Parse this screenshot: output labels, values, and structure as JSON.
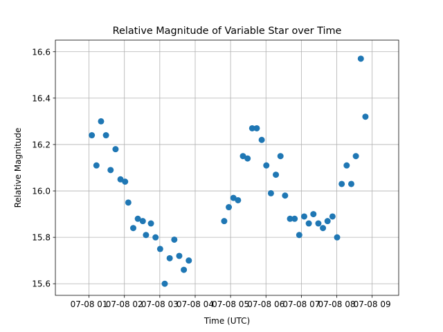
{
  "chart_data": {
    "type": "scatter",
    "title": "Relative Magnitude of Variable Star over Time",
    "xlabel": "Time (UTC)",
    "ylabel": "Relative Magnitude",
    "grid": true,
    "marker_color": "#1f77b4",
    "x_tick_labels": [
      "07-08 01",
      "07-08 02",
      "07-08 03",
      "07-08 04",
      "07-08 05",
      "07-08 06",
      "07-08 07",
      "07-08 08",
      "07-08 09"
    ],
    "x_tick_hours": [
      1,
      2,
      3,
      4,
      5,
      6,
      7,
      8,
      9
    ],
    "xlim_hours": [
      0.05,
      9.75
    ],
    "ylim": [
      15.55,
      16.65
    ],
    "y_ticks": [
      15.6,
      15.8,
      16.0,
      16.2,
      16.4,
      16.6
    ],
    "y_tick_labels": [
      "15.6",
      "15.8",
      "16.0",
      "16.2",
      "16.4",
      "16.6"
    ],
    "x_unit_note": "x values are hours of day on 07-08",
    "points": [
      {
        "x": 1.08,
        "y": 16.24
      },
      {
        "x": 1.21,
        "y": 16.11
      },
      {
        "x": 1.34,
        "y": 16.3
      },
      {
        "x": 1.48,
        "y": 16.24
      },
      {
        "x": 1.61,
        "y": 16.09
      },
      {
        "x": 1.75,
        "y": 16.18
      },
      {
        "x": 1.89,
        "y": 16.05
      },
      {
        "x": 2.02,
        "y": 16.04
      },
      {
        "x": 2.11,
        "y": 15.95
      },
      {
        "x": 2.25,
        "y": 15.84
      },
      {
        "x": 2.38,
        "y": 15.88
      },
      {
        "x": 2.52,
        "y": 15.87
      },
      {
        "x": 2.61,
        "y": 15.81
      },
      {
        "x": 2.75,
        "y": 15.86
      },
      {
        "x": 2.88,
        "y": 15.8
      },
      {
        "x": 3.01,
        "y": 15.75
      },
      {
        "x": 3.14,
        "y": 15.6
      },
      {
        "x": 3.28,
        "y": 15.71
      },
      {
        "x": 3.41,
        "y": 15.79
      },
      {
        "x": 3.55,
        "y": 15.72
      },
      {
        "x": 3.68,
        "y": 15.66
      },
      {
        "x": 3.82,
        "y": 15.7
      },
      {
        "x": 4.82,
        "y": 15.87
      },
      {
        "x": 4.95,
        "y": 15.93
      },
      {
        "x": 5.08,
        "y": 15.97
      },
      {
        "x": 5.21,
        "y": 15.96
      },
      {
        "x": 5.35,
        "y": 16.15
      },
      {
        "x": 5.48,
        "y": 16.14
      },
      {
        "x": 5.61,
        "y": 16.27
      },
      {
        "x": 5.74,
        "y": 16.27
      },
      {
        "x": 5.88,
        "y": 16.22
      },
      {
        "x": 6.01,
        "y": 16.11
      },
      {
        "x": 6.14,
        "y": 15.99
      },
      {
        "x": 6.28,
        "y": 16.07
      },
      {
        "x": 6.41,
        "y": 16.15
      },
      {
        "x": 6.54,
        "y": 15.98
      },
      {
        "x": 6.68,
        "y": 15.88
      },
      {
        "x": 6.81,
        "y": 15.88
      },
      {
        "x": 6.94,
        "y": 15.81
      },
      {
        "x": 7.08,
        "y": 15.89
      },
      {
        "x": 7.21,
        "y": 15.86
      },
      {
        "x": 7.34,
        "y": 15.9
      },
      {
        "x": 7.48,
        "y": 15.86
      },
      {
        "x": 7.61,
        "y": 15.84
      },
      {
        "x": 7.74,
        "y": 15.87
      },
      {
        "x": 7.88,
        "y": 15.89
      },
      {
        "x": 8.01,
        "y": 15.8
      },
      {
        "x": 8.14,
        "y": 16.03
      },
      {
        "x": 8.28,
        "y": 16.11
      },
      {
        "x": 8.41,
        "y": 16.03
      },
      {
        "x": 8.54,
        "y": 16.15
      },
      {
        "x": 8.68,
        "y": 16.57
      },
      {
        "x": 8.81,
        "y": 16.32
      }
    ]
  }
}
